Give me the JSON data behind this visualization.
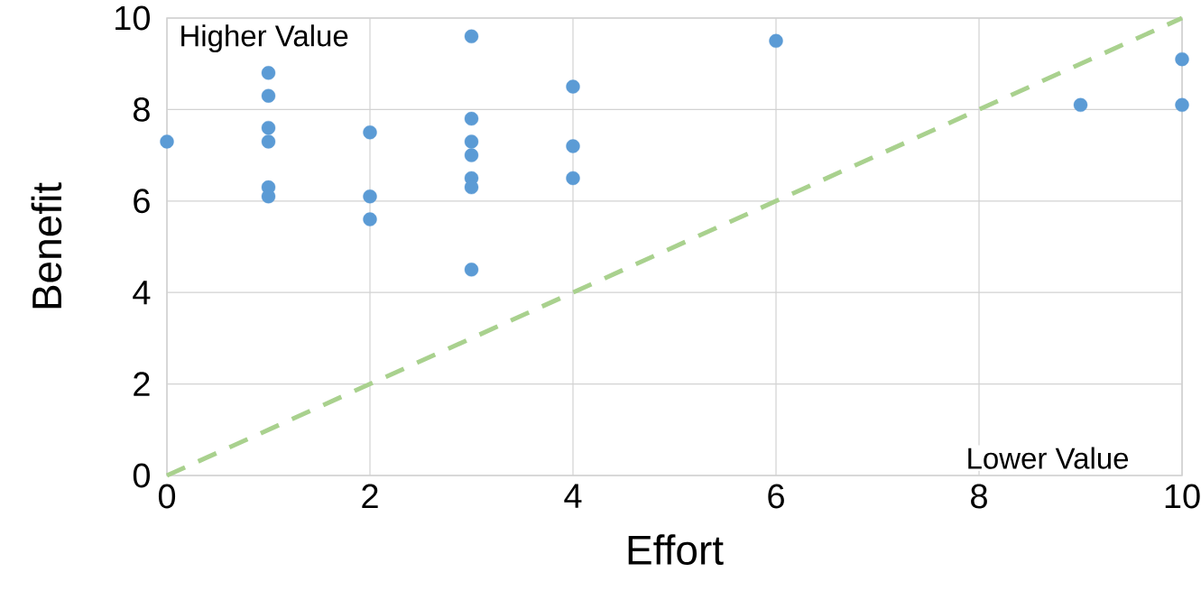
{
  "chart_data": {
    "type": "scatter",
    "xlabel": "Effort",
    "ylabel": "Benefit",
    "xlim": [
      0,
      10
    ],
    "ylim": [
      0,
      10
    ],
    "xticks": [
      0,
      2,
      4,
      6,
      8,
      10
    ],
    "yticks": [
      0,
      2,
      4,
      6,
      8,
      10
    ],
    "grid": true,
    "annotations": [
      "Higher Value",
      "Lower Value"
    ],
    "series": [
      {
        "color": "#5b9bd5",
        "marker": "circle",
        "x": [
          0,
          1,
          1,
          1,
          1,
          1,
          1,
          2,
          2,
          2,
          3,
          3,
          3,
          3,
          3,
          3,
          3,
          4,
          4,
          4,
          6,
          9,
          10,
          10
        ],
        "values": [
          7.3,
          8.8,
          8.3,
          7.6,
          7.3,
          6.3,
          6.1,
          7.5,
          6.1,
          5.6,
          9.6,
          7.8,
          7.3,
          7.0,
          6.5,
          6.3,
          4.5,
          8.5,
          7.2,
          6.5,
          9.5,
          8.1,
          9.1,
          8.1
        ]
      },
      {
        "type": "line",
        "color": "#a9d18e",
        "line_style": "dashed",
        "marker": "none",
        "x": [
          0,
          10
        ],
        "values": [
          0,
          10
        ]
      }
    ]
  }
}
